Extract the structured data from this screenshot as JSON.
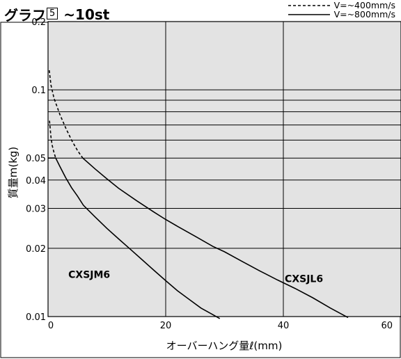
{
  "header": {
    "title": "グラフ",
    "box_number": "5",
    "subtitle": "~10st"
  },
  "chart_data": {
    "type": "line",
    "title": "グラフ5 ~10st",
    "xlabel": "オーバーハング量ℓ(mm)",
    "ylabel": "質量m(kg)",
    "xlim": [
      0,
      60
    ],
    "ylim": [
      0.01,
      0.2
    ],
    "y_scale": "log",
    "grid": true,
    "legend_placement": "top-right",
    "x_ticks": [
      "0",
      "20",
      "40",
      "60"
    ],
    "y_ticks": [
      {
        "value": 0.2,
        "label": "0.2"
      },
      {
        "value": 0.1,
        "label": "0.1"
      },
      {
        "value": 0.05,
        "label": "0.05"
      },
      {
        "value": 0.04,
        "label": "0.04"
      },
      {
        "value": 0.03,
        "label": "0.03"
      },
      {
        "value": 0.02,
        "label": "0.02"
      },
      {
        "value": 0.01,
        "label": "0.01"
      }
    ],
    "y_gridlines": [
      0.01,
      0.02,
      0.03,
      0.04,
      0.05,
      0.06,
      0.07,
      0.08,
      0.09,
      0.1,
      0.2
    ],
    "x_gridlines": [
      0,
      20,
      40,
      60
    ],
    "legend": [
      {
        "label": "V=~400mm/s",
        "style": "dashed"
      },
      {
        "label": "V=~800mm/s",
        "style": "solid"
      }
    ],
    "series": [
      {
        "name": "CXSJM6",
        "dashed": {
          "x": [
            0.25,
            0.35,
            0.5,
            0.7,
            1.0,
            1.3
          ],
          "y": [
            0.073,
            0.068,
            0.062,
            0.057,
            0.053,
            0.05
          ]
        },
        "solid": {
          "x": [
            0,
            1.3,
            2,
            3,
            4,
            5,
            6,
            8,
            10,
            12,
            14,
            16,
            18,
            20,
            22,
            24,
            26,
            28,
            29.2
          ],
          "y": [
            0.05,
            0.05,
            0.046,
            0.041,
            0.037,
            0.034,
            0.031,
            0.0275,
            0.0245,
            0.022,
            0.0198,
            0.0178,
            0.016,
            0.0144,
            0.013,
            0.0119,
            0.0109,
            0.0102,
            0.0098
          ]
        }
      },
      {
        "name": "CXSJL6",
        "dashed": {
          "x": [
            0.2,
            0.5,
            1,
            2,
            3,
            4,
            5,
            5.9
          ],
          "y": [
            0.122,
            0.105,
            0.092,
            0.078,
            0.068,
            0.06,
            0.054,
            0.05
          ]
        },
        "solid": {
          "x": [
            5.9,
            8,
            10,
            12,
            15,
            18,
            20,
            22,
            25,
            28,
            30,
            33,
            36,
            39,
            42,
            45,
            48,
            51
          ],
          "y": [
            0.05,
            0.0448,
            0.0405,
            0.0368,
            0.0325,
            0.0289,
            0.0268,
            0.025,
            0.0226,
            0.0204,
            0.0193,
            0.0175,
            0.0159,
            0.0145,
            0.0133,
            0.0121,
            0.0109,
            0.0099
          ]
        }
      }
    ],
    "annotations": [
      {
        "text": "CXSJM6",
        "x": 7,
        "y": 0.0148
      },
      {
        "text": "CXSJL6",
        "x": 43.5,
        "y": 0.0142
      }
    ]
  }
}
